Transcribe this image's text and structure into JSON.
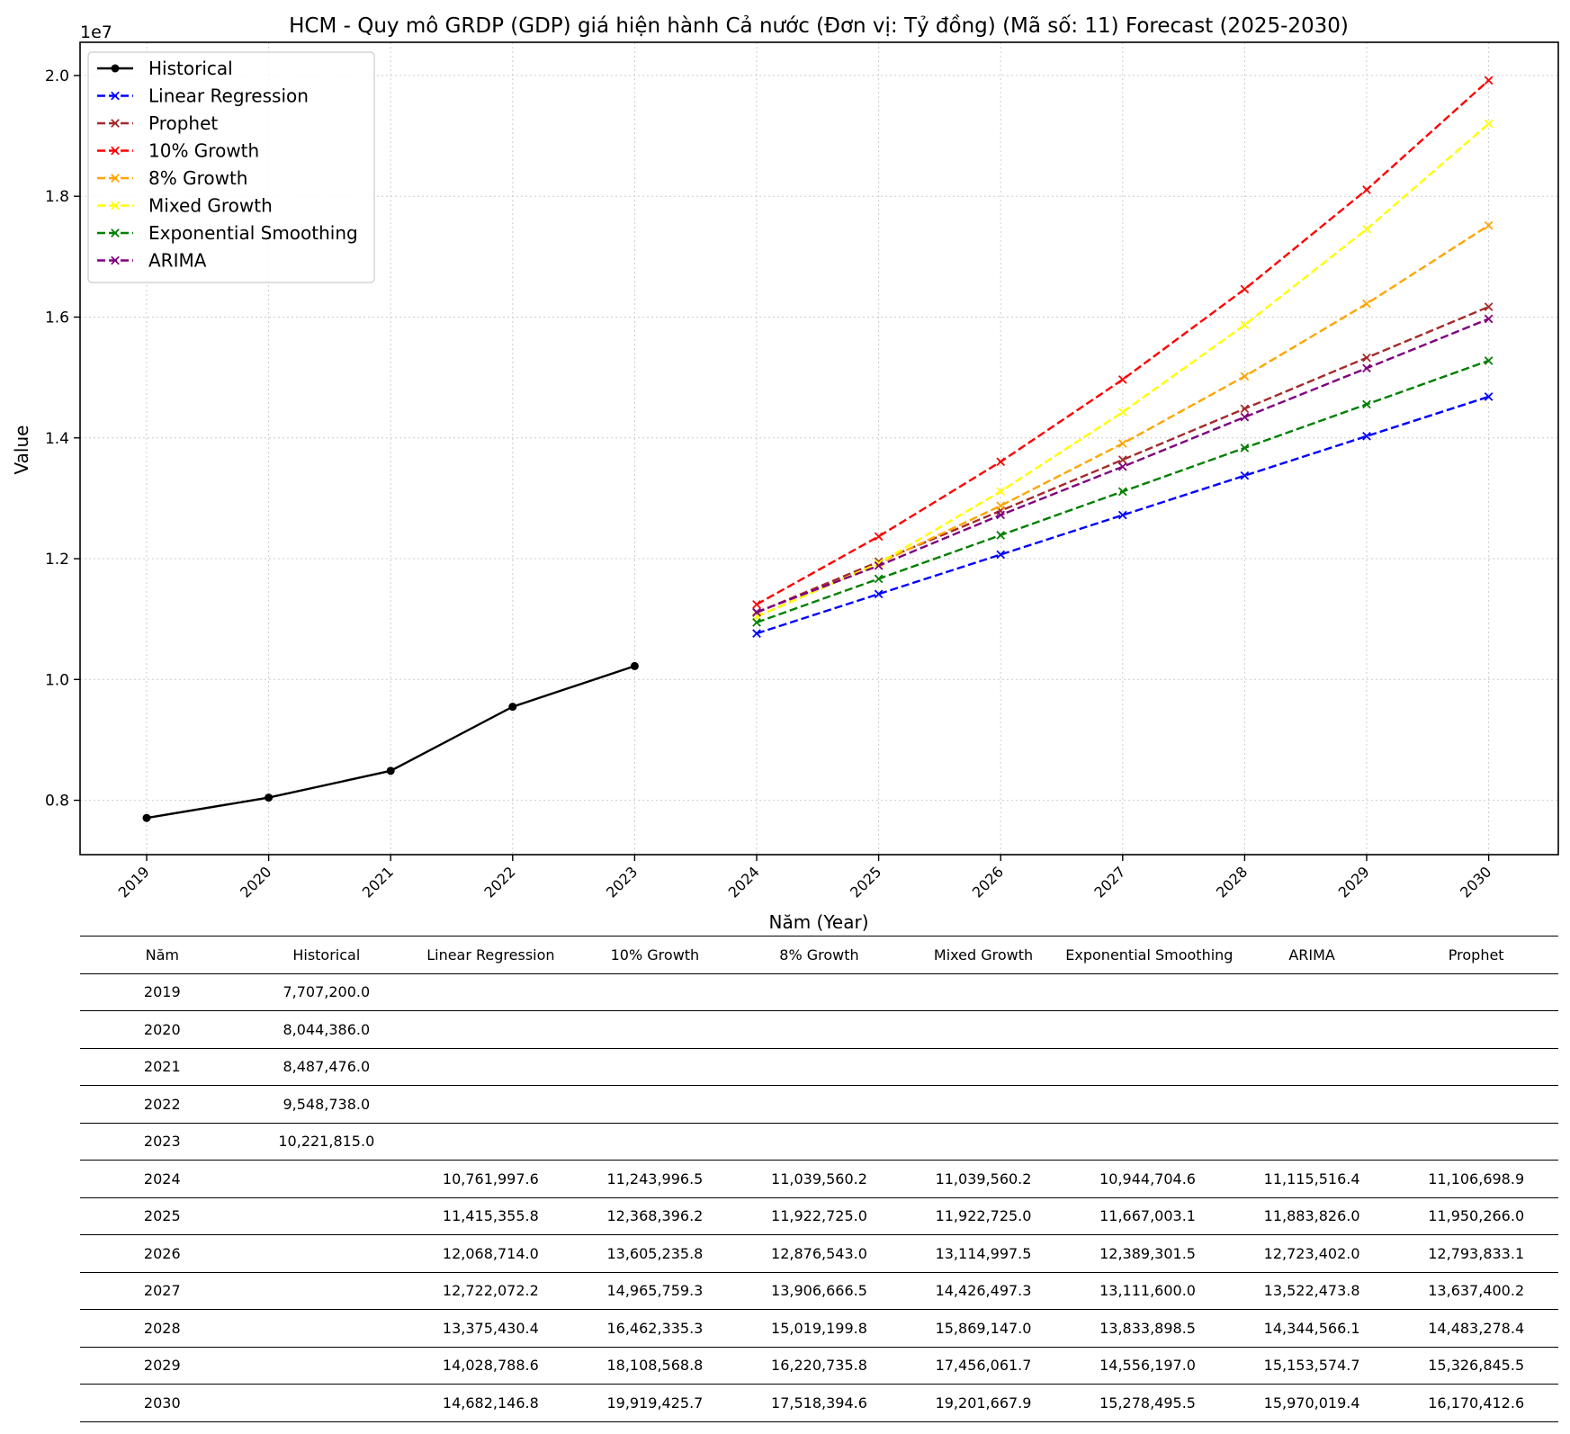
{
  "chart_data": {
    "type": "line",
    "title": "HCM - Quy mô GRDP (GDP) giá hiện hành Cả nước (Đơn vị: Tỷ đồng) (Mã số: 11) Forecast (2025-2030)",
    "xlabel": "Năm (Year)",
    "ylabel": "Value",
    "y_offset_label": "1e7",
    "ylim": [
      7.1,
      20.55
    ],
    "y_ticks": [
      "0.8",
      "1.0",
      "1.2",
      "1.4",
      "1.6",
      "1.8",
      "2.0"
    ],
    "x_ticks": [
      "2019",
      "2020",
      "2021",
      "2022",
      "2023",
      "2024",
      "2025",
      "2026",
      "2027",
      "2028",
      "2029",
      "2030"
    ],
    "grid": true,
    "legend_position": "top-left",
    "series": [
      {
        "name": "Historical",
        "color": "#000000",
        "style": "solid",
        "marker": "dot",
        "x": [
          2019,
          2020,
          2021,
          2022,
          2023
        ],
        "y": [
          7707200.0,
          8044386.0,
          8487476.0,
          9548738.0,
          10221815.0
        ]
      },
      {
        "name": "Linear Regression",
        "color": "#0000ff",
        "style": "dashed",
        "marker": "x",
        "x": [
          2024,
          2025,
          2026,
          2027,
          2028,
          2029,
          2030
        ],
        "y": [
          10761997.6,
          11415355.8,
          12068714.0,
          12722072.2,
          13375430.4,
          14028788.6,
          14682146.8
        ]
      },
      {
        "name": "Prophet",
        "color": "#a52a2a",
        "style": "dashed",
        "marker": "x",
        "x": [
          2024,
          2025,
          2026,
          2027,
          2028,
          2029,
          2030
        ],
        "y": [
          11106698.9,
          11950266.0,
          12793833.1,
          13637400.2,
          14483278.4,
          15326845.5,
          16170412.6
        ]
      },
      {
        "name": "10% Growth",
        "color": "#ff0000",
        "style": "dashed",
        "marker": "x",
        "x": [
          2024,
          2025,
          2026,
          2027,
          2028,
          2029,
          2030
        ],
        "y": [
          11243996.5,
          12368396.2,
          13605235.8,
          14965759.3,
          16462335.3,
          18108568.8,
          19919425.7
        ]
      },
      {
        "name": "8% Growth",
        "color": "#ffa500",
        "style": "dashed",
        "marker": "x",
        "x": [
          2024,
          2025,
          2026,
          2027,
          2028,
          2029,
          2030
        ],
        "y": [
          11039560.2,
          11922725.0,
          12876543.0,
          13906666.5,
          15019199.8,
          16220735.8,
          17518394.6
        ]
      },
      {
        "name": "Mixed Growth",
        "color": "#ffff00",
        "style": "dashed",
        "marker": "x",
        "x": [
          2024,
          2025,
          2026,
          2027,
          2028,
          2029,
          2030
        ],
        "y": [
          11039560.2,
          11922725.0,
          13114997.5,
          14426497.3,
          15869147.0,
          17456061.7,
          19201667.9
        ]
      },
      {
        "name": "Exponential Smoothing",
        "color": "#008000",
        "style": "dashed",
        "marker": "x",
        "x": [
          2024,
          2025,
          2026,
          2027,
          2028,
          2029,
          2030
        ],
        "y": [
          10944704.6,
          11667003.1,
          12389301.5,
          13111600.0,
          13833898.5,
          14556197.0,
          15278495.5
        ]
      },
      {
        "name": "ARIMA",
        "color": "#800080",
        "style": "dashed",
        "marker": "x",
        "x": [
          2024,
          2025,
          2026,
          2027,
          2028,
          2029,
          2030
        ],
        "y": [
          11115516.4,
          11883826.0,
          12723402.0,
          13522473.8,
          14344566.1,
          15153574.7,
          15970019.4
        ]
      }
    ]
  },
  "table": {
    "headers": [
      "Năm",
      "Historical",
      "Linear Regression",
      "10% Growth",
      "8% Growth",
      "Mixed Growth",
      "Exponential Smoothing",
      "ARIMA",
      "Prophet"
    ],
    "rows": [
      [
        "2019",
        "7,707,200.0",
        "",
        "",
        "",
        "",
        "",
        "",
        ""
      ],
      [
        "2020",
        "8,044,386.0",
        "",
        "",
        "",
        "",
        "",
        "",
        ""
      ],
      [
        "2021",
        "8,487,476.0",
        "",
        "",
        "",
        "",
        "",
        "",
        ""
      ],
      [
        "2022",
        "9,548,738.0",
        "",
        "",
        "",
        "",
        "",
        "",
        ""
      ],
      [
        "2023",
        "10,221,815.0",
        "",
        "",
        "",
        "",
        "",
        "",
        ""
      ],
      [
        "2024",
        "",
        "10,761,997.6",
        "11,243,996.5",
        "11,039,560.2",
        "11,039,560.2",
        "10,944,704.6",
        "11,115,516.4",
        "11,106,698.9"
      ],
      [
        "2025",
        "",
        "11,415,355.8",
        "12,368,396.2",
        "11,922,725.0",
        "11,922,725.0",
        "11,667,003.1",
        "11,883,826.0",
        "11,950,266.0"
      ],
      [
        "2026",
        "",
        "12,068,714.0",
        "13,605,235.8",
        "12,876,543.0",
        "13,114,997.5",
        "12,389,301.5",
        "12,723,402.0",
        "12,793,833.1"
      ],
      [
        "2027",
        "",
        "12,722,072.2",
        "14,965,759.3",
        "13,906,666.5",
        "14,426,497.3",
        "13,111,600.0",
        "13,522,473.8",
        "13,637,400.2"
      ],
      [
        "2028",
        "",
        "13,375,430.4",
        "16,462,335.3",
        "15,019,199.8",
        "15,869,147.0",
        "13,833,898.5",
        "14,344,566.1",
        "14,483,278.4"
      ],
      [
        "2029",
        "",
        "14,028,788.6",
        "18,108,568.8",
        "16,220,735.8",
        "17,456,061.7",
        "14,556,197.0",
        "15,153,574.7",
        "15,326,845.5"
      ],
      [
        "2030",
        "",
        "14,682,146.8",
        "19,919,425.7",
        "17,518,394.6",
        "19,201,667.9",
        "15,278,495.5",
        "15,970,019.4",
        "16,170,412.6"
      ]
    ]
  }
}
